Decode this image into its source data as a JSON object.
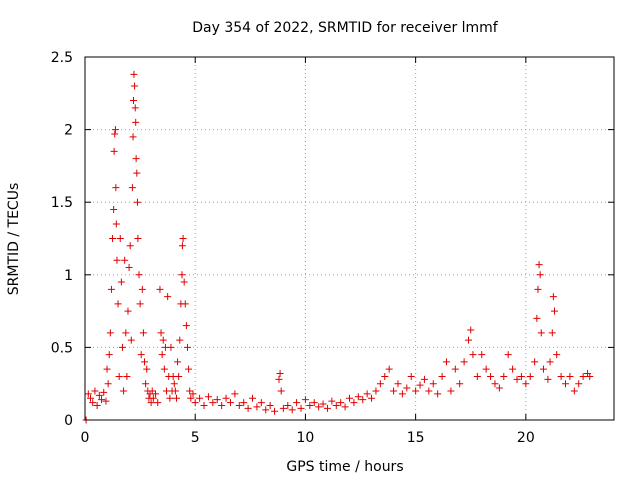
{
  "chart_data": {
    "type": "scatter",
    "title": "Day 354 of 2022, SRMTID for receiver lmmf",
    "xlabel": "GPS time / hours",
    "ylabel": "SRMTID / TECUs",
    "xlim": [
      0,
      24
    ],
    "ylim": [
      0,
      2.5
    ],
    "xticks": [
      0,
      5,
      10,
      15,
      20
    ],
    "xtick_labels": [
      "0",
      "5",
      "10",
      "15",
      "20"
    ],
    "yticks": [
      0,
      0.5,
      1,
      1.5,
      2,
      2.5
    ],
    "ytick_labels": [
      "0",
      "0.5",
      "1",
      "1.5",
      "2",
      "2.5"
    ],
    "grid": true,
    "marker": "+",
    "color": "#e00000",
    "series": [
      {
        "name": "SRMTID",
        "points": [
          [
            0.05,
            0.0
          ],
          [
            0.15,
            0.18
          ],
          [
            0.25,
            0.15
          ],
          [
            0.35,
            0.12
          ],
          [
            0.45,
            0.2
          ],
          [
            0.55,
            0.1
          ],
          [
            0.65,
            0.17
          ],
          [
            0.75,
            0.14
          ],
          [
            0.85,
            0.19
          ],
          [
            0.95,
            0.13
          ],
          [
            1.0,
            0.35
          ],
          [
            1.05,
            0.25
          ],
          [
            1.1,
            0.45
          ],
          [
            1.15,
            0.6
          ],
          [
            1.2,
            0.9
          ],
          [
            1.25,
            1.25
          ],
          [
            1.3,
            1.45
          ],
          [
            1.32,
            1.85
          ],
          [
            1.35,
            1.97
          ],
          [
            1.38,
            2.0
          ],
          [
            1.4,
            1.6
          ],
          [
            1.42,
            1.35
          ],
          [
            1.45,
            1.1
          ],
          [
            1.5,
            0.8
          ],
          [
            1.55,
            0.3
          ],
          [
            1.6,
            1.25
          ],
          [
            1.65,
            0.95
          ],
          [
            1.7,
            0.5
          ],
          [
            1.75,
            0.2
          ],
          [
            1.8,
            1.1
          ],
          [
            1.85,
            0.6
          ],
          [
            1.9,
            0.3
          ],
          [
            1.95,
            0.75
          ],
          [
            2.0,
            1.05
          ],
          [
            2.05,
            1.2
          ],
          [
            2.1,
            0.55
          ],
          [
            2.15,
            1.6
          ],
          [
            2.18,
            1.95
          ],
          [
            2.2,
            2.2
          ],
          [
            2.22,
            2.38
          ],
          [
            2.25,
            2.3
          ],
          [
            2.28,
            2.15
          ],
          [
            2.3,
            2.05
          ],
          [
            2.32,
            1.8
          ],
          [
            2.35,
            1.7
          ],
          [
            2.38,
            1.5
          ],
          [
            2.4,
            1.25
          ],
          [
            2.45,
            1.0
          ],
          [
            2.5,
            0.8
          ],
          [
            2.55,
            0.45
          ],
          [
            2.6,
            0.9
          ],
          [
            2.65,
            0.6
          ],
          [
            2.7,
            0.4
          ],
          [
            2.75,
            0.25
          ],
          [
            2.8,
            0.35
          ],
          [
            2.85,
            0.2
          ],
          [
            2.9,
            0.15
          ],
          [
            2.95,
            0.18
          ],
          [
            3.0,
            0.12
          ],
          [
            3.05,
            0.2
          ],
          [
            3.1,
            0.15
          ],
          [
            3.2,
            0.18
          ],
          [
            3.3,
            0.12
          ],
          [
            3.4,
            0.9
          ],
          [
            3.45,
            0.6
          ],
          [
            3.5,
            0.45
          ],
          [
            3.55,
            0.55
          ],
          [
            3.6,
            0.35
          ],
          [
            3.65,
            0.5
          ],
          [
            3.7,
            0.2
          ],
          [
            3.75,
            0.85
          ],
          [
            3.8,
            0.3
          ],
          [
            3.85,
            0.15
          ],
          [
            3.9,
            0.5
          ],
          [
            3.95,
            0.2
          ],
          [
            4.0,
            0.3
          ],
          [
            4.05,
            0.25
          ],
          [
            4.1,
            0.2
          ],
          [
            4.15,
            0.15
          ],
          [
            4.2,
            0.4
          ],
          [
            4.25,
            0.3
          ],
          [
            4.3,
            0.55
          ],
          [
            4.35,
            0.8
          ],
          [
            4.4,
            1.0
          ],
          [
            4.42,
            1.2
          ],
          [
            4.45,
            1.25
          ],
          [
            4.5,
            0.95
          ],
          [
            4.55,
            0.8
          ],
          [
            4.6,
            0.65
          ],
          [
            4.65,
            0.5
          ],
          [
            4.7,
            0.35
          ],
          [
            4.75,
            0.2
          ],
          [
            4.8,
            0.15
          ],
          [
            4.9,
            0.18
          ],
          [
            5.0,
            0.12
          ],
          [
            5.2,
            0.15
          ],
          [
            5.4,
            0.1
          ],
          [
            5.6,
            0.16
          ],
          [
            5.8,
            0.12
          ],
          [
            6.0,
            0.14
          ],
          [
            6.2,
            0.1
          ],
          [
            6.4,
            0.15
          ],
          [
            6.6,
            0.12
          ],
          [
            6.8,
            0.18
          ],
          [
            7.0,
            0.1
          ],
          [
            7.2,
            0.12
          ],
          [
            7.4,
            0.08
          ],
          [
            7.6,
            0.15
          ],
          [
            7.8,
            0.09
          ],
          [
            8.0,
            0.12
          ],
          [
            8.2,
            0.07
          ],
          [
            8.4,
            0.1
          ],
          [
            8.6,
            0.06
          ],
          [
            8.8,
            0.28
          ],
          [
            8.85,
            0.32
          ],
          [
            8.9,
            0.2
          ],
          [
            9.0,
            0.08
          ],
          [
            9.2,
            0.1
          ],
          [
            9.4,
            0.07
          ],
          [
            9.6,
            0.12
          ],
          [
            9.8,
            0.08
          ],
          [
            10.0,
            0.14
          ],
          [
            10.2,
            0.1
          ],
          [
            10.4,
            0.12
          ],
          [
            10.6,
            0.09
          ],
          [
            10.8,
            0.11
          ],
          [
            11.0,
            0.08
          ],
          [
            11.2,
            0.13
          ],
          [
            11.4,
            0.1
          ],
          [
            11.6,
            0.12
          ],
          [
            11.8,
            0.09
          ],
          [
            12.0,
            0.15
          ],
          [
            12.2,
            0.12
          ],
          [
            12.4,
            0.16
          ],
          [
            12.6,
            0.14
          ],
          [
            12.8,
            0.18
          ],
          [
            13.0,
            0.15
          ],
          [
            13.2,
            0.2
          ],
          [
            13.4,
            0.25
          ],
          [
            13.6,
            0.3
          ],
          [
            13.8,
            0.35
          ],
          [
            14.0,
            0.2
          ],
          [
            14.2,
            0.25
          ],
          [
            14.4,
            0.18
          ],
          [
            14.6,
            0.22
          ],
          [
            14.8,
            0.3
          ],
          [
            15.0,
            0.2
          ],
          [
            15.2,
            0.24
          ],
          [
            15.4,
            0.28
          ],
          [
            15.6,
            0.2
          ],
          [
            15.8,
            0.25
          ],
          [
            16.0,
            0.18
          ],
          [
            16.2,
            0.3
          ],
          [
            16.4,
            0.4
          ],
          [
            16.6,
            0.2
          ],
          [
            16.8,
            0.35
          ],
          [
            17.0,
            0.25
          ],
          [
            17.2,
            0.4
          ],
          [
            17.4,
            0.55
          ],
          [
            17.5,
            0.62
          ],
          [
            17.6,
            0.45
          ],
          [
            17.8,
            0.3
          ],
          [
            18.0,
            0.45
          ],
          [
            18.2,
            0.35
          ],
          [
            18.4,
            0.3
          ],
          [
            18.6,
            0.25
          ],
          [
            18.8,
            0.22
          ],
          [
            19.0,
            0.3
          ],
          [
            19.2,
            0.45
          ],
          [
            19.4,
            0.35
          ],
          [
            19.6,
            0.28
          ],
          [
            19.8,
            0.3
          ],
          [
            20.0,
            0.25
          ],
          [
            20.2,
            0.3
          ],
          [
            20.4,
            0.4
          ],
          [
            20.5,
            0.7
          ],
          [
            20.55,
            0.9
          ],
          [
            20.6,
            1.07
          ],
          [
            20.65,
            1.0
          ],
          [
            20.7,
            0.6
          ],
          [
            20.8,
            0.35
          ],
          [
            21.0,
            0.28
          ],
          [
            21.1,
            0.4
          ],
          [
            21.2,
            0.6
          ],
          [
            21.25,
            0.85
          ],
          [
            21.3,
            0.75
          ],
          [
            21.4,
            0.45
          ],
          [
            21.6,
            0.3
          ],
          [
            21.8,
            0.25
          ],
          [
            22.0,
            0.3
          ],
          [
            22.2,
            0.2
          ],
          [
            22.4,
            0.25
          ],
          [
            22.6,
            0.3
          ],
          [
            22.8,
            0.32
          ],
          [
            22.9,
            0.3
          ]
        ]
      }
    ]
  }
}
